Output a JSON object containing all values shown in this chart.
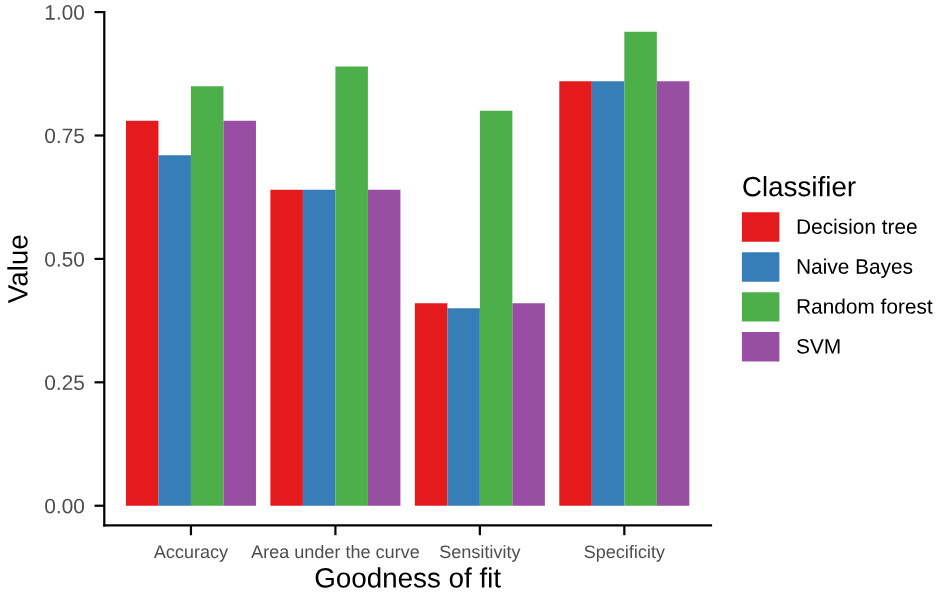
{
  "chart_data": {
    "type": "bar",
    "xlabel": "Goodness of fit",
    "ylabel": "Value",
    "legend_title": "Classifier",
    "legend": "right",
    "grid": false,
    "categories": [
      "Accuracy",
      "Area under the curve",
      "Sensitivity",
      "Specificity"
    ],
    "ylim": [
      -0.04,
      1.0
    ],
    "yticks": [
      {
        "value": 0,
        "label": "0.00"
      },
      {
        "value": 0.25,
        "label": "0.25"
      },
      {
        "value": 0.5,
        "label": "0.50"
      },
      {
        "value": 0.75,
        "label": "0.75"
      },
      {
        "value": 1,
        "label": "1.00"
      }
    ],
    "series": [
      {
        "name": "Decision tree",
        "color": "#e41a1c",
        "values": [
          0.78,
          0.64,
          0.41,
          0.86
        ]
      },
      {
        "name": "Naive Bayes",
        "color": "#377eb8",
        "values": [
          0.71,
          0.64,
          0.4,
          0.86
        ]
      },
      {
        "name": "Random forest",
        "color": "#4daf4a",
        "values": [
          0.85,
          0.89,
          0.8,
          0.96
        ]
      },
      {
        "name": "SVM",
        "color": "#984ea3",
        "values": [
          0.78,
          0.64,
          0.41,
          0.86
        ]
      }
    ]
  }
}
